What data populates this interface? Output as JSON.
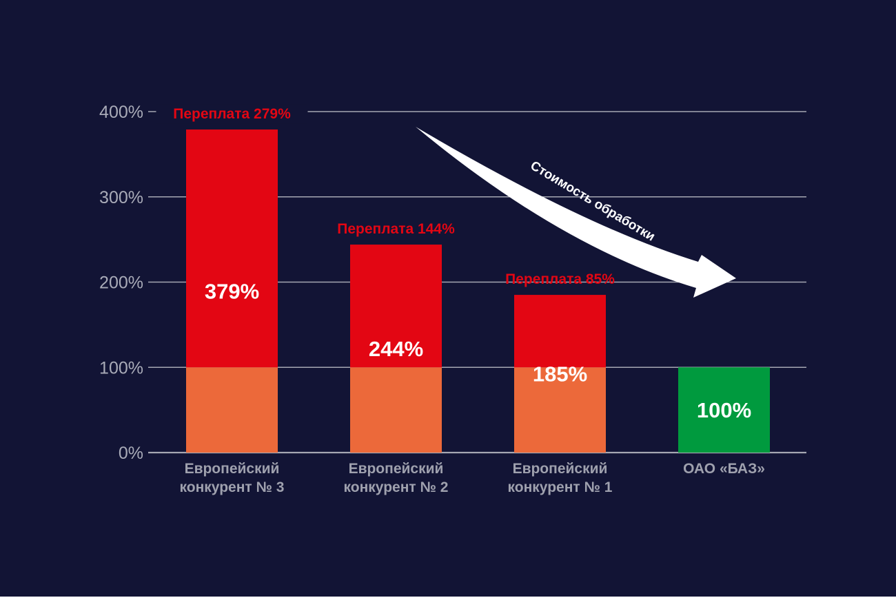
{
  "colors": {
    "background": "#121435",
    "grid": "#a6a8b3",
    "excess": "#e30613",
    "base": "#ec693a",
    "reference": "#009a3e",
    "text_muted": "#9fa1ae",
    "arrow": "#ffffff"
  },
  "arrow_label": "Стоимость обработки",
  "chart_data": {
    "type": "bar",
    "stacked": true,
    "categories": [
      [
        "Европейский",
        "конкурент № 3"
      ],
      [
        "Европейский",
        "конкурент № 2"
      ],
      [
        "Европейский",
        "конкурент № 1"
      ],
      [
        "ОАО «БАЗ»"
      ]
    ],
    "values": [
      379,
      244,
      185,
      100
    ],
    "value_labels": [
      "379%",
      "244%",
      "185%",
      "100%"
    ],
    "overpayment_labels": [
      "Переплата 279%",
      "Переплата 144%",
      "Переплата 85%",
      ""
    ],
    "series": [
      {
        "values": [
          100,
          100,
          100,
          100
        ]
      },
      {
        "values": [
          279,
          144,
          85,
          0
        ]
      }
    ],
    "yticks": [
      0,
      100,
      200,
      300,
      400
    ],
    "ytick_labels": [
      "0%",
      "100%",
      "200%",
      "300%",
      "400%"
    ],
    "ylim": [
      0,
      400
    ],
    "grid": true
  }
}
